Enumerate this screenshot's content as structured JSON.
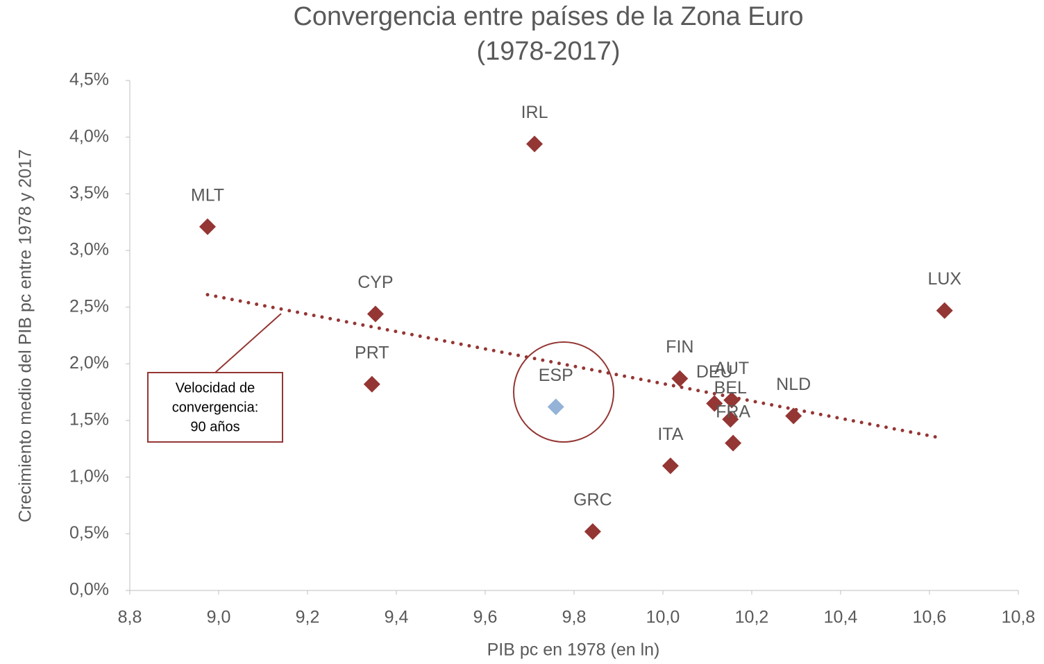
{
  "chart_data": {
    "type": "scatter",
    "title": "Convergencia entre países de la Zona Euro",
    "subtitle": "(1978-2017)",
    "x_label": "PIB pc en 1978 (en ln)",
    "y_label": "Crecimiento medio del PIB pc entre 1978 y 2017",
    "labels": [
      "MLT",
      "IRL",
      "CYP",
      "PRT",
      "ESP",
      "GRC",
      "ITA",
      "FIN",
      "DEU",
      "AUT",
      "BEL",
      "FRA",
      "NLD",
      "LUX"
    ],
    "x": [
      8.975,
      9.711,
      9.353,
      9.345,
      9.759,
      9.842,
      10.017,
      10.038,
      10.116,
      10.155,
      10.152,
      10.158,
      10.294,
      10.634
    ],
    "values": [
      3.21,
      3.94,
      2.44,
      1.82,
      1.62,
      0.52,
      1.1,
      1.87,
      1.65,
      1.68,
      1.51,
      1.3,
      1.54,
      2.47
    ],
    "colors": [
      "#943634",
      "#943634",
      "#943634",
      "#943634",
      "#95b3d7",
      "#943634",
      "#943634",
      "#943634",
      "#943634",
      "#943634",
      "#943634",
      "#943634",
      "#943634",
      "#943634"
    ],
    "trendline": {
      "x": [
        8.975,
        10.62
      ],
      "values": [
        2.61,
        1.35
      ],
      "color": "#943634"
    },
    "annotation": [
      "Velocidad de",
      "convergencia:",
      "90 años"
    ],
    "xlim": [
      8.8,
      10.8
    ],
    "xticks": [
      {
        "value": 8.8,
        "label": "8,8"
      },
      {
        "value": 9.0,
        "label": "9,0"
      },
      {
        "value": 9.2,
        "label": "9,2"
      },
      {
        "value": 9.4,
        "label": "9,4"
      },
      {
        "value": 9.6,
        "label": "9,6"
      },
      {
        "value": 9.8,
        "label": "9,8"
      },
      {
        "value": 10.0,
        "label": "10,0"
      },
      {
        "value": 10.2,
        "label": "10,2"
      },
      {
        "value": 10.4,
        "label": "10,4"
      },
      {
        "value": 10.6,
        "label": "10,6"
      },
      {
        "value": 10.8,
        "label": "10,8"
      }
    ],
    "ylim": [
      0,
      4.5
    ],
    "yticks": [
      {
        "value": 0,
        "label": "0,0%"
      },
      {
        "value": 0.5,
        "label": "0,5%"
      },
      {
        "value": 1.0,
        "label": "1,0%"
      },
      {
        "value": 1.5,
        "label": "1,5%"
      },
      {
        "value": 2.0,
        "label": "2,0%"
      },
      {
        "value": 2.5,
        "label": "2,5%"
      },
      {
        "value": 3.0,
        "label": "3,0%"
      },
      {
        "value": 3.5,
        "label": "3,5%"
      },
      {
        "value": 4.0,
        "label": "4,0%"
      },
      {
        "value": 4.5,
        "label": "4,5%"
      }
    ]
  }
}
